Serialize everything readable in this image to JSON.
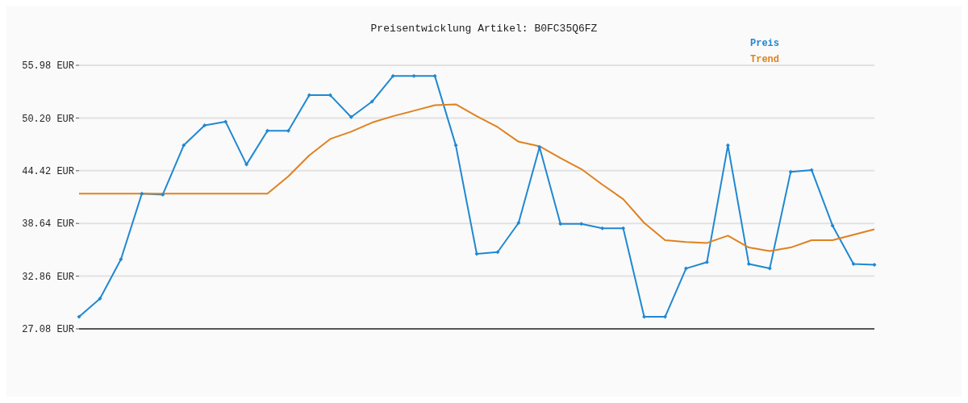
{
  "chart_data": {
    "type": "line",
    "title": "Preisentwicklung Artikel: B0FC35Q6FZ",
    "categories": [
      null,
      null,
      null,
      null,
      null,
      null,
      null,
      null,
      null,
      null,
      null,
      null,
      null,
      null,
      null,
      null,
      null,
      null,
      null,
      null,
      null,
      null,
      null,
      null,
      null,
      null,
      null,
      null,
      null,
      null,
      null,
      null,
      null,
      null,
      null,
      null,
      null,
      null,
      null
    ],
    "series": [
      {
        "name": "Preis",
        "color": "#1f88d2",
        "marker": "diamond",
        "values": [
          28.4,
          30.4,
          34.7,
          41.9,
          41.8,
          47.2,
          49.4,
          49.8,
          45.1,
          48.8,
          48.8,
          52.7,
          52.7,
          50.3,
          52.0,
          54.8,
          54.8,
          54.8,
          47.2,
          35.3,
          35.5,
          38.7,
          47.0,
          38.6,
          38.6,
          38.1,
          38.1,
          28.4,
          28.4,
          33.7,
          34.4,
          47.2,
          34.2,
          33.7,
          44.3,
          44.5,
          38.4,
          34.2,
          34.1
        ]
      },
      {
        "name": "Trend",
        "color": "#e0811f",
        "marker": "none",
        "values": [
          41.9,
          41.9,
          41.9,
          41.9,
          41.9,
          41.9,
          41.9,
          41.9,
          41.9,
          41.9,
          43.8,
          46.1,
          47.9,
          48.7,
          49.7,
          50.4,
          51.0,
          51.6,
          51.7,
          50.4,
          49.2,
          47.6,
          47.1,
          45.8,
          44.6,
          42.9,
          41.3,
          38.7,
          36.8,
          36.6,
          36.5,
          37.3,
          36.0,
          35.6,
          36.0,
          36.8,
          36.8,
          37.4,
          38.0
        ]
      }
    ],
    "ylim": [
      27.08,
      55.98
    ],
    "yticks": [
      {
        "value": 27.08,
        "label": "27.08 EUR"
      },
      {
        "value": 32.86,
        "label": "32.86 EUR"
      },
      {
        "value": 38.64,
        "label": "38.64 EUR"
      },
      {
        "value": 44.42,
        "label": "44.42 EUR"
      },
      {
        "value": 50.2,
        "label": "50.20 EUR"
      },
      {
        "value": 55.98,
        "label": "55.98 EUR"
      }
    ],
    "grid": "y",
    "legend": "top right",
    "tick_labels": "y"
  }
}
